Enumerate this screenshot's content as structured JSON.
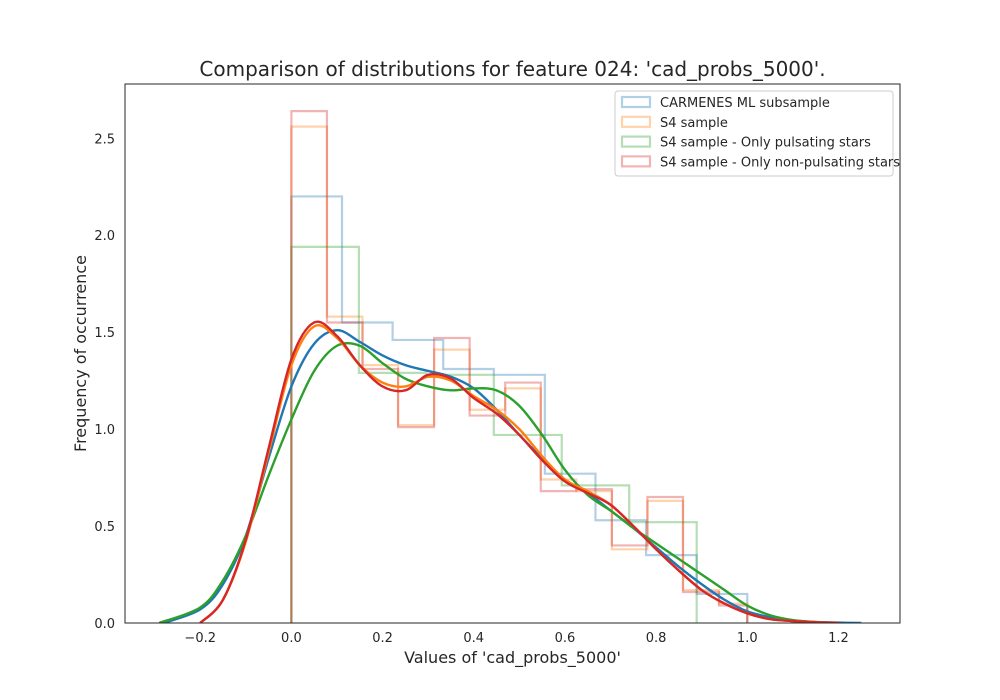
{
  "chart_data": {
    "type": "histogram+kde",
    "title": "Comparison of distributions for feature 024: 'cad_probs_5000'.",
    "xlabel": "Values of 'cad_probs_5000'",
    "ylabel": "Frequency of occurrence",
    "xlim": [
      -0.365,
      1.335
    ],
    "ylim": [
      0,
      2.78
    ],
    "xticks": [
      -0.2,
      0.0,
      0.2,
      0.4,
      0.6,
      0.8,
      1.0,
      1.2
    ],
    "xtick_labels": [
      "−0.2",
      "0.0",
      "0.2",
      "0.4",
      "0.6",
      "0.8",
      "1.0",
      "1.2"
    ],
    "yticks": [
      0.0,
      0.5,
      1.0,
      1.5,
      2.0,
      2.5
    ],
    "ytick_labels": [
      "0.0",
      "0.5",
      "1.0",
      "1.5",
      "2.0",
      "2.5"
    ],
    "grid": false,
    "legend_position": "top-right",
    "series": [
      {
        "name": "CARMENES ML subsample",
        "color": "#1f77b4",
        "hist": {
          "edges": [
            0.0,
            0.111,
            0.222,
            0.333,
            0.444,
            0.556,
            0.667,
            0.778,
            0.889,
            1.0
          ],
          "heights": [
            2.2,
            1.55,
            1.46,
            1.31,
            1.28,
            0.77,
            0.53,
            0.35,
            0.15
          ]
        },
        "kde": {
          "x": [
            -0.28,
            -0.2,
            -0.15,
            -0.1,
            -0.05,
            0.0,
            0.05,
            0.1,
            0.15,
            0.2,
            0.25,
            0.3,
            0.35,
            0.4,
            0.45,
            0.5,
            0.55,
            0.6,
            0.65,
            0.7,
            0.75,
            0.8,
            0.85,
            0.9,
            0.95,
            1.0,
            1.05,
            1.1,
            1.15,
            1.2,
            1.25
          ],
          "y": [
            0.0,
            0.07,
            0.2,
            0.45,
            0.85,
            1.22,
            1.44,
            1.51,
            1.45,
            1.38,
            1.33,
            1.3,
            1.27,
            1.21,
            1.1,
            0.97,
            0.85,
            0.74,
            0.67,
            0.58,
            0.49,
            0.39,
            0.29,
            0.2,
            0.12,
            0.06,
            0.03,
            0.01,
            0.005,
            0.002,
            0.0
          ]
        }
      },
      {
        "name": "S4 sample",
        "color": "#ff7f0e",
        "hist": {
          "edges": [
            0.0,
            0.078,
            0.156,
            0.234,
            0.313,
            0.391,
            0.469,
            0.547,
            0.625,
            0.703,
            0.781,
            0.859,
            0.938,
            1.0
          ],
          "heights": [
            2.56,
            1.58,
            1.33,
            1.02,
            1.41,
            1.1,
            1.21,
            0.74,
            0.68,
            0.38,
            0.63,
            0.17,
            0.1
          ]
        },
        "kde": {
          "x": [
            -0.2,
            -0.15,
            -0.1,
            -0.05,
            0.0,
            0.05,
            0.1,
            0.15,
            0.2,
            0.25,
            0.3,
            0.35,
            0.4,
            0.45,
            0.5,
            0.55,
            0.6,
            0.65,
            0.7,
            0.75,
            0.8,
            0.85,
            0.9,
            0.95,
            1.0,
            1.05,
            1.1,
            1.15,
            1.2
          ],
          "y": [
            0.0,
            0.12,
            0.42,
            0.88,
            1.33,
            1.53,
            1.47,
            1.33,
            1.24,
            1.22,
            1.27,
            1.25,
            1.17,
            1.1,
            1.0,
            0.86,
            0.74,
            0.68,
            0.61,
            0.5,
            0.38,
            0.27,
            0.17,
            0.1,
            0.05,
            0.02,
            0.01,
            0.004,
            0.0
          ]
        }
      },
      {
        "name": "S4 sample - Only pulsating stars",
        "color": "#2ca02c",
        "hist": {
          "edges": [
            0.0,
            0.148,
            0.296,
            0.444,
            0.593,
            0.741,
            0.889
          ],
          "heights": [
            1.94,
            1.29,
            1.28,
            0.97,
            0.71,
            0.52
          ]
        },
        "kde": {
          "x": [
            -0.29,
            -0.2,
            -0.15,
            -0.1,
            -0.05,
            0.0,
            0.05,
            0.1,
            0.15,
            0.2,
            0.25,
            0.3,
            0.35,
            0.4,
            0.45,
            0.5,
            0.55,
            0.6,
            0.65,
            0.7,
            0.75,
            0.8,
            0.85,
            0.9,
            0.95,
            1.0,
            1.05,
            1.1,
            1.15,
            1.2
          ],
          "y": [
            0.0,
            0.08,
            0.22,
            0.45,
            0.76,
            1.05,
            1.3,
            1.43,
            1.43,
            1.34,
            1.26,
            1.22,
            1.2,
            1.21,
            1.2,
            1.12,
            0.97,
            0.79,
            0.66,
            0.58,
            0.49,
            0.41,
            0.33,
            0.25,
            0.17,
            0.09,
            0.04,
            0.015,
            0.005,
            0.0
          ]
        }
      },
      {
        "name": "S4 sample - Only non-pulsating stars",
        "color": "#d62728",
        "hist": {
          "edges": [
            0.0,
            0.078,
            0.156,
            0.234,
            0.313,
            0.391,
            0.469,
            0.547,
            0.625,
            0.703,
            0.781,
            0.859,
            0.938,
            1.0
          ],
          "heights": [
            2.64,
            1.55,
            1.31,
            1.01,
            1.47,
            1.07,
            1.24,
            0.68,
            0.69,
            0.4,
            0.65,
            0.16,
            0.09
          ]
        },
        "kde": {
          "x": [
            -0.2,
            -0.15,
            -0.1,
            -0.05,
            0.0,
            0.05,
            0.1,
            0.15,
            0.2,
            0.25,
            0.3,
            0.35,
            0.4,
            0.45,
            0.5,
            0.55,
            0.6,
            0.65,
            0.7,
            0.75,
            0.8,
            0.85,
            0.9,
            0.95,
            1.0,
            1.05,
            1.1,
            1.15,
            1.2
          ],
          "y": [
            0.0,
            0.12,
            0.43,
            0.9,
            1.36,
            1.55,
            1.48,
            1.33,
            1.22,
            1.2,
            1.28,
            1.26,
            1.16,
            1.08,
            0.97,
            0.84,
            0.73,
            0.67,
            0.61,
            0.5,
            0.38,
            0.27,
            0.17,
            0.1,
            0.05,
            0.02,
            0.01,
            0.004,
            0.0
          ]
        }
      }
    ]
  }
}
